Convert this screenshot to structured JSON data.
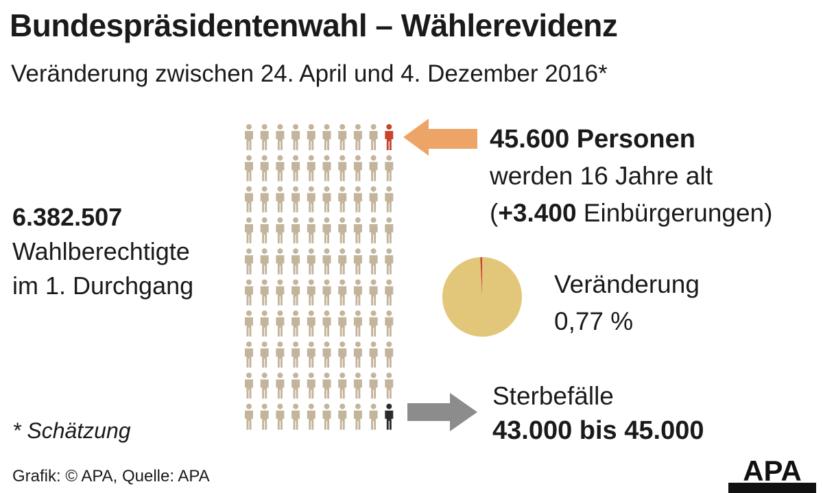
{
  "header": {
    "title": "Bundespräsidentenwahl – Wählerevidenz",
    "subtitle": "Veränderung zwischen 24. April und 4. Dezember 2016*"
  },
  "left": {
    "number": "6.382.507",
    "line1": "Wahlberechtigte",
    "line2": "im 1. Durchgang"
  },
  "new_voters": {
    "headline": "45.600 Personen",
    "line1": "werden 16 Jahre alt",
    "line2_open": "(",
    "line2_bold": "+3.400",
    "line2_rest": " Einbürgerungen)"
  },
  "change": {
    "label": "Veränderung",
    "value": "0,77 %"
  },
  "deaths": {
    "label": "Sterbefälle",
    "value": "43.000 bis 45.000"
  },
  "footnote": "* Schätzung",
  "source": "Grafik: © APA, Quelle: APA",
  "logo_text": "APA",
  "colors": {
    "person_default": "#c3b49b",
    "person_new": "#c8442e",
    "person_deceased": "#2b2b2b",
    "arrow_in": "#eda467",
    "arrow_out": "#8c8c8c",
    "pie_main": "#e2c67a",
    "pie_change": "#c8442e"
  },
  "chart_data": {
    "type": "pie",
    "title": "",
    "slices": [
      {
        "label": "",
        "value": 99.23
      },
      {
        "label": "Veränderung",
        "value": 0.77
      }
    ],
    "pictogram": {
      "rows": 10,
      "cols": 10,
      "new_index": [
        0,
        9
      ],
      "deceased_index": [
        9,
        9
      ]
    }
  }
}
